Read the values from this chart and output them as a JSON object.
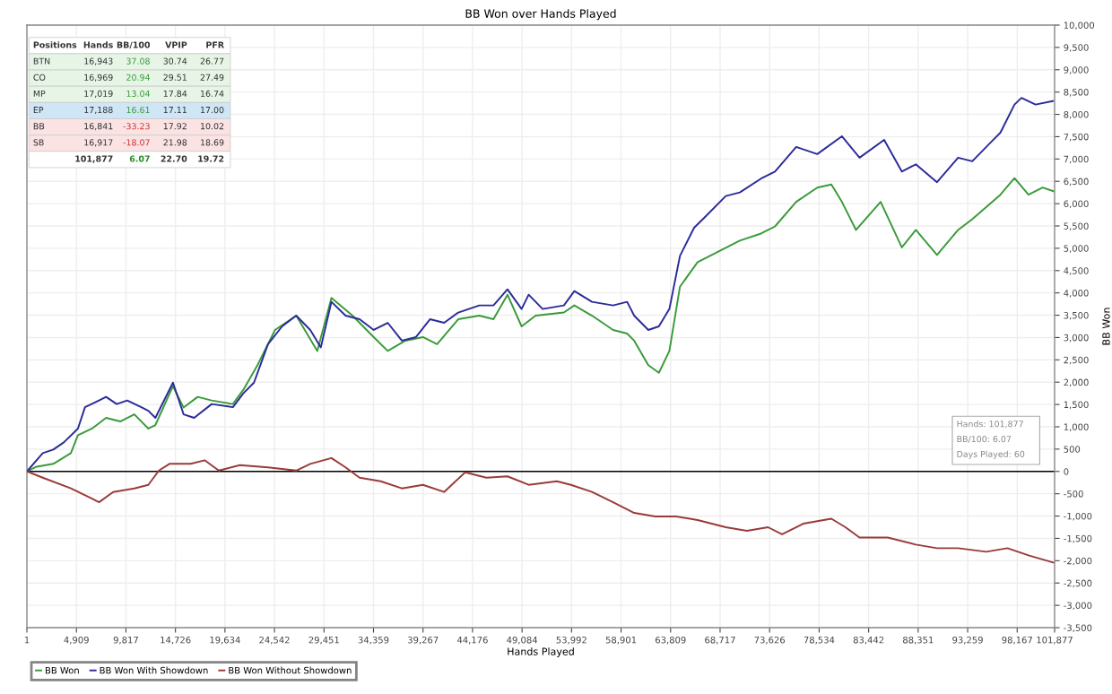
{
  "chart_data": {
    "type": "line",
    "title": "BB Won over Hands Played",
    "xlabel": "Hands Played",
    "ylabel": "BB Won",
    "xlim": [
      1,
      101877
    ],
    "ylim": [
      -3500,
      10000
    ],
    "xticks": [
      1,
      {
        "value": 4909,
        "label": "4,909"
      },
      {
        "value": 9817,
        "label": "9,817"
      },
      {
        "value": 14726,
        "label": "14,726"
      },
      {
        "value": 19634,
        "label": "19,634"
      },
      {
        "value": 24542,
        "label": "24,542"
      },
      {
        "value": 29451,
        "label": "29,451"
      },
      {
        "value": 34359,
        "label": "34,359"
      },
      {
        "value": 39267,
        "label": "39,267"
      },
      {
        "value": 44176,
        "label": "44,176"
      },
      {
        "value": 49084,
        "label": "49,084"
      },
      {
        "value": 53992,
        "label": "53,992"
      },
      {
        "value": 58901,
        "label": "58,901"
      },
      {
        "value": 63809,
        "label": "63,809"
      },
      {
        "value": 68717,
        "label": "68,717"
      },
      {
        "value": 73626,
        "label": "73,626"
      },
      {
        "value": 78534,
        "label": "78,534"
      },
      {
        "value": 83442,
        "label": "83,442"
      },
      {
        "value": 88351,
        "label": "88,351"
      },
      {
        "value": 93259,
        "label": "93,259"
      },
      {
        "value": 98167,
        "label": "98,167"
      },
      {
        "value": 101877,
        "label": "101,877"
      }
    ],
    "yticks": [
      {
        "value": -3500,
        "label": "-3,500"
      },
      {
        "value": -3000,
        "label": "-3,000"
      },
      {
        "value": -2500,
        "label": "-2,500"
      },
      {
        "value": -2000,
        "label": "-2,000"
      },
      {
        "value": -1500,
        "label": "-1,500"
      },
      {
        "value": -1000,
        "label": "-1,000"
      },
      {
        "value": -500,
        "label": "-500"
      },
      0,
      500,
      {
        "value": 1000,
        "label": "1,000"
      },
      {
        "value": 1500,
        "label": "1,500"
      },
      {
        "value": 2000,
        "label": "2,000"
      },
      {
        "value": 2500,
        "label": "2,500"
      },
      {
        "value": 3000,
        "label": "3,000"
      },
      {
        "value": 3500,
        "label": "3,500"
      },
      {
        "value": 4000,
        "label": "4,000"
      },
      {
        "value": 4500,
        "label": "4,500"
      },
      {
        "value": 5000,
        "label": "5,000"
      },
      {
        "value": 5500,
        "label": "5,500"
      },
      {
        "value": 6000,
        "label": "6,000"
      },
      {
        "value": 6500,
        "label": "6,500"
      },
      {
        "value": 7000,
        "label": "7,000"
      },
      {
        "value": 7500,
        "label": "7,500"
      },
      {
        "value": 8000,
        "label": "8,000"
      },
      {
        "value": 8500,
        "label": "8,500"
      },
      {
        "value": 9000,
        "label": "9,000"
      },
      {
        "value": 9500,
        "label": "9,500"
      },
      {
        "value": 10000,
        "label": "10,000"
      }
    ],
    "grid": true,
    "legend": "bottom left",
    "marker": "none",
    "line_style": "solid",
    "ref_lines": [
      {
        "axis": "y",
        "value": 0,
        "color": "#000000"
      }
    ],
    "series": [
      {
        "name": "BB Won",
        "color": "#3a9a3a",
        "x": [
          1,
          870,
          2620,
          4360,
          5060,
          6460,
          7850,
          9250,
          10650,
          12040,
          12740,
          14480,
          15530,
          16930,
          18320,
          20420,
          21460,
          22860,
          24600,
          26700,
          28790,
          30190,
          32280,
          34380,
          35770,
          37520,
          39260,
          40660,
          42760,
          44850,
          46250,
          47640,
          49040,
          50430,
          53230,
          54270,
          56020,
          58110,
          59500,
          60200,
          61600,
          62650,
          63690,
          64740,
          66490,
          68580,
          70670,
          72770,
          74160,
          76260,
          78350,
          79750,
          80790,
          82190,
          84630,
          86730,
          88120,
          90220,
          92310,
          93710,
          96500,
          97900,
          99290,
          100690,
          101740
        ],
        "values": [
          0,
          100,
          170,
          410,
          810,
          960,
          1200,
          1120,
          1280,
          960,
          1040,
          1910,
          1430,
          1670,
          1590,
          1510,
          1830,
          2380,
          3170,
          3490,
          2700,
          3890,
          3490,
          3010,
          2700,
          2930,
          3010,
          2850,
          3410,
          3490,
          3410,
          3960,
          3250,
          3490,
          3560,
          3720,
          3490,
          3170,
          3090,
          2930,
          2380,
          2210,
          2700,
          4140,
          4690,
          4930,
          5170,
          5330,
          5490,
          6040,
          6360,
          6430,
          6040,
          5410,
          6040,
          5020,
          5410,
          4850,
          5410,
          5650,
          6200,
          6570,
          6200,
          6360,
          6280
        ]
      },
      {
        "name": "BB Won With Showdown",
        "color": "#2b2b9a",
        "x": [
          1,
          1570,
          2620,
          3660,
          5060,
          5760,
          7150,
          7850,
          8900,
          9950,
          11340,
          12040,
          12740,
          14480,
          15530,
          16580,
          18320,
          20420,
          21460,
          22510,
          23900,
          25300,
          26700,
          28090,
          29140,
          30190,
          31590,
          32980,
          34380,
          35770,
          37170,
          38570,
          39960,
          41360,
          42760,
          44850,
          46250,
          47640,
          49040,
          49740,
          51130,
          53230,
          54270,
          56020,
          58110,
          59500,
          60200,
          61600,
          62650,
          63690,
          64740,
          66140,
          67180,
          69280,
          70670,
          72770,
          74160,
          76260,
          78350,
          80790,
          82540,
          84980,
          86730,
          88120,
          90220,
          92310,
          93710,
          95800,
          96500,
          97900,
          98590,
          99990,
          101700
        ],
        "values": [
          0,
          410,
          490,
          650,
          960,
          1440,
          1590,
          1670,
          1510,
          1590,
          1440,
          1360,
          1200,
          1990,
          1280,
          1200,
          1510,
          1440,
          1750,
          1990,
          2850,
          3250,
          3490,
          3170,
          2780,
          3800,
          3490,
          3410,
          3170,
          3330,
          2930,
          3010,
          3410,
          3330,
          3560,
          3720,
          3720,
          4080,
          3640,
          3960,
          3640,
          3720,
          4040,
          3800,
          3720,
          3800,
          3490,
          3170,
          3250,
          3640,
          4830,
          5460,
          5690,
          6170,
          6250,
          6560,
          6720,
          7270,
          7110,
          7510,
          7030,
          7430,
          6720,
          6880,
          6480,
          7030,
          6950,
          7430,
          7590,
          8220,
          8370,
          8220,
          8300
        ]
      },
      {
        "name": "BB Won Without Showdown",
        "color": "#9a3a3a",
        "x": [
          1,
          1570,
          4360,
          6460,
          7150,
          8550,
          10650,
          12040,
          13090,
          14130,
          16230,
          17620,
          19020,
          21110,
          23900,
          26700,
          28090,
          30190,
          31590,
          32980,
          35070,
          37170,
          39260,
          41360,
          43450,
          45550,
          47640,
          49740,
          52530,
          53930,
          56020,
          58110,
          60200,
          62290,
          64390,
          66490,
          69280,
          71370,
          73470,
          74860,
          76960,
          79750,
          81140,
          82540,
          85330,
          88120,
          90220,
          92310,
          95100,
          97200,
          99290,
          101740
        ],
        "values": [
          0,
          -140,
          -380,
          -610,
          -690,
          -460,
          -380,
          -300,
          20,
          170,
          170,
          250,
          20,
          140,
          90,
          20,
          170,
          300,
          90,
          -140,
          -220,
          -380,
          -300,
          -460,
          -20,
          -140,
          -110,
          -300,
          -220,
          -300,
          -460,
          -690,
          -930,
          -1010,
          -1010,
          -1090,
          -1250,
          -1330,
          -1250,
          -1410,
          -1170,
          -1060,
          -1250,
          -1480,
          -1480,
          -1640,
          -1720,
          -1720,
          -1800,
          -1720,
          -1880,
          -2040
        ]
      }
    ],
    "annotations": [
      "Positions",
      "Hands",
      "BB/100",
      "VPIP",
      "PFR",
      "BTN",
      "16,943",
      "37.08",
      "30.74",
      "26.77",
      "CO",
      "16,969",
      "20.94",
      "29.51",
      "27.49",
      "MP",
      "17,019",
      "13.04",
      "17.84",
      "16.74",
      "EP",
      "17,188",
      "16.61",
      "17.11",
      "17.00",
      "BB",
      "16,841",
      "-33.23",
      "17.92",
      "10.02",
      "SB",
      "16,917",
      "-18.07",
      "21.98",
      "18.69",
      "101,877",
      "6.07",
      "22.70",
      "19.72",
      "Hands: 101,877",
      "BB/100: 6.07",
      "Days Played: 60"
    ]
  }
}
